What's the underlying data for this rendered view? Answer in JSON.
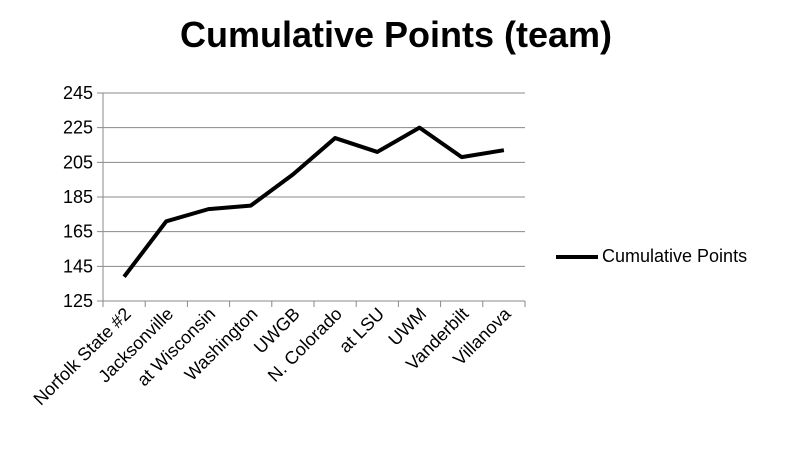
{
  "chart_data": {
    "type": "line",
    "title": "Cumulative Points (team)",
    "xlabel": "",
    "ylabel": "",
    "categories": [
      "Norfolk State #2",
      "Jacksonville",
      "at Wisconsin",
      "Washington",
      "UWGB",
      "N. Colorado",
      "at LSU",
      "UWM",
      "Vanderbilt",
      "Villanova"
    ],
    "series": [
      {
        "name": "Cumulative Points",
        "values": [
          139,
          171,
          178,
          180,
          198,
          219,
          211,
          225,
          208,
          212
        ],
        "color": "#000000"
      }
    ],
    "ylim": [
      125,
      245
    ],
    "yticks": [
      125,
      145,
      165,
      185,
      205,
      225,
      245
    ],
    "grid": true,
    "legend": "right"
  }
}
